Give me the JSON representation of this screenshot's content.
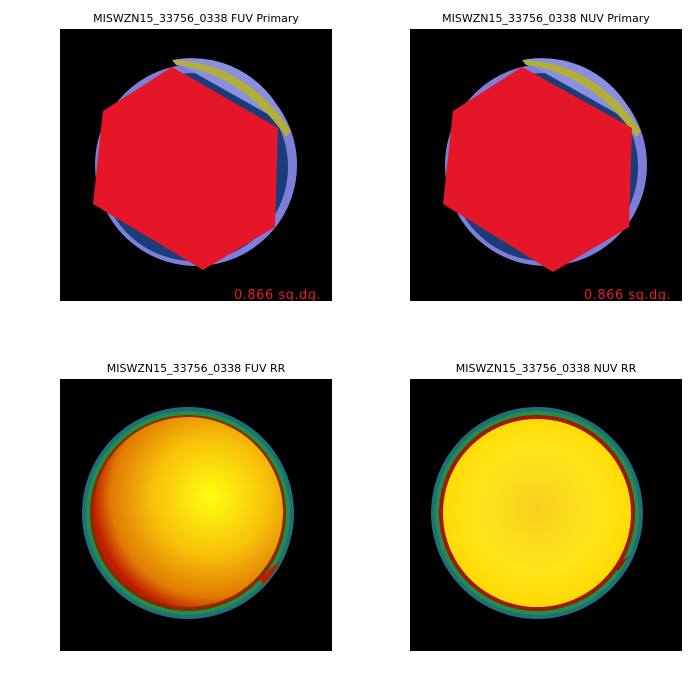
{
  "panels": [
    {
      "title": "MISWZN15_33756_0338 FUV Primary",
      "type": "primary",
      "area_label": "0.866 sq.dg."
    },
    {
      "title": "MISWZN15_33756_0338 NUV Primary",
      "type": "primary",
      "area_label": "0.866 sq.dg."
    },
    {
      "title": "MISWZN15_33756_0338 FUV RR",
      "type": "rr"
    },
    {
      "title": "MISWZN15_33756_0338 NUV RR",
      "type": "rr"
    }
  ],
  "colors": {
    "background": "#000000",
    "outer_ring": "#7b7fd9",
    "inner_disk": "#1b3c7a",
    "hexagon": "#e41628",
    "edge_highlight": "#b3ad3a",
    "rr_center": "#ffff10",
    "rr_edge": "#d02000",
    "rr_ring": "#1f8f4a"
  }
}
